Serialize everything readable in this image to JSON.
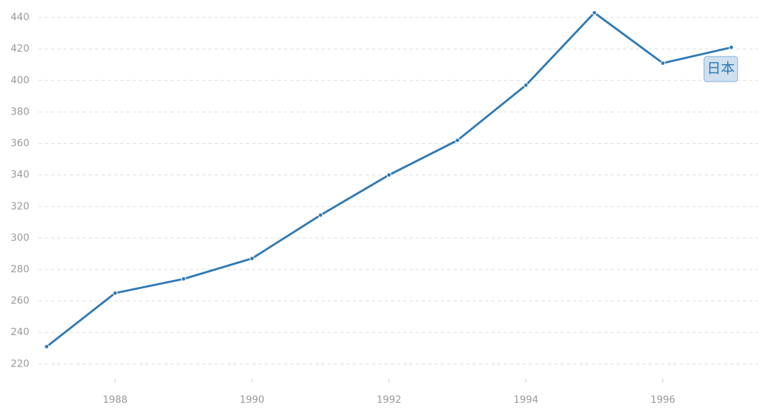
{
  "chart_data": {
    "type": "line",
    "x": [
      1987,
      1988,
      1989,
      1990,
      1991,
      1992,
      1993,
      1994,
      1995,
      1996,
      1997
    ],
    "series": [
      {
        "name": "日本",
        "color": "#2f7ab5",
        "values": [
          231,
          265,
          274,
          287,
          314.5,
          340,
          362,
          397,
          443,
          411,
          421
        ]
      }
    ],
    "xlim": [
      1986.88,
      1997.39
    ],
    "xticks": [
      1988,
      1990,
      1992,
      1994,
      1996
    ],
    "ylim": [
      212,
      446
    ],
    "yticks": [
      220,
      240,
      260,
      280,
      300,
      320,
      340,
      360,
      380,
      400,
      420,
      440
    ],
    "grid": true
  }
}
